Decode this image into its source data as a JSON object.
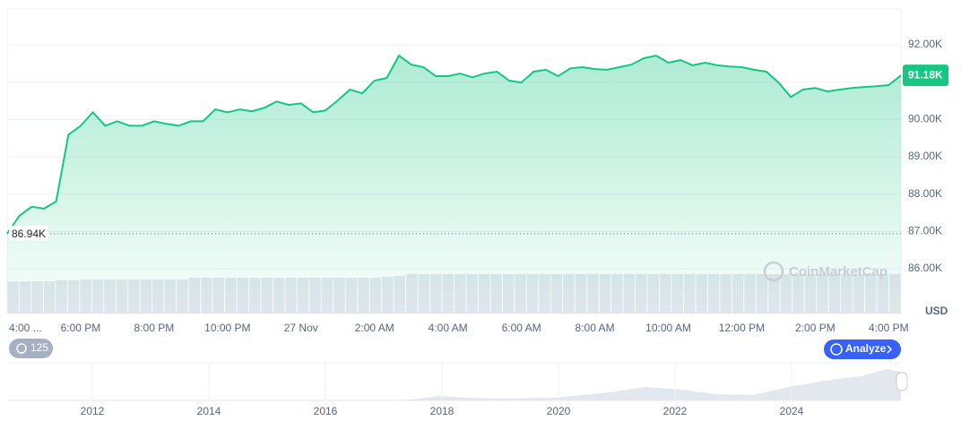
{
  "chart_data": {
    "type": "line",
    "categories": [
      "4:00 ...",
      null,
      null,
      null,
      null,
      null,
      "6:00 PM",
      null,
      null,
      null,
      null,
      null,
      "8:00 PM",
      null,
      null,
      null,
      null,
      null,
      "10:00 PM",
      null,
      null,
      null,
      null,
      null,
      "27 Nov",
      null,
      null,
      null,
      null,
      null,
      "2:00 AM",
      null,
      null,
      null,
      null,
      null,
      "4:00 AM",
      null,
      null,
      null,
      null,
      null,
      "6:00 AM",
      null,
      null,
      null,
      null,
      null,
      "8:00 AM",
      null,
      null,
      null,
      null,
      null,
      "10:00 AM",
      null,
      null,
      null,
      null,
      null,
      "12:00 PM",
      null,
      null,
      null,
      null,
      null,
      "2:00 PM",
      null,
      null,
      null,
      null,
      null,
      "4:00 PM",
      null
    ],
    "series": [
      {
        "color": "#16c784",
        "values": [
          86940,
          87420,
          87660,
          87610,
          87800,
          89590,
          89830,
          90190,
          89830,
          89950,
          89830,
          89830,
          89950,
          89880,
          89830,
          89950,
          89950,
          90270,
          90190,
          90270,
          90220,
          90310,
          90480,
          90390,
          90430,
          90190,
          90240,
          90510,
          90800,
          90700,
          91040,
          91110,
          91710,
          91470,
          91400,
          91160,
          91160,
          91230,
          91130,
          91230,
          91280,
          91040,
          90990,
          91280,
          91330,
          91160,
          91370,
          91400,
          91350,
          91330,
          91400,
          91470,
          91640,
          91710,
          91520,
          91590,
          91450,
          91520,
          91450,
          91420,
          91400,
          91330,
          91280,
          90990,
          90600,
          90800,
          90840,
          90750,
          90800,
          90840,
          90870,
          90890,
          90920,
          91180
        ]
      }
    ],
    "ylim": [
      84800,
      92960
    ],
    "yticks": [
      {
        "value": 86000,
        "label": "86.00K"
      },
      {
        "value": 87000,
        "label": "87.00K"
      },
      {
        "value": 88000,
        "label": "88.00K"
      },
      {
        "value": 89000,
        "label": "89.00K"
      },
      {
        "value": 90000,
        "label": "90.00K"
      },
      {
        "value": 91000,
        "label": "91.00K"
      },
      {
        "value": 92000,
        "label": "92.00K"
      }
    ],
    "grid": true,
    "reference_line": {
      "value": 86940,
      "label": "86.94K"
    },
    "current_value": {
      "value": 91180,
      "label": "91.18K"
    },
    "y_axis_unit": "USD",
    "volume": {
      "color": "#e3e7ee",
      "ylim": [
        0,
        50
      ],
      "values": [
        36,
        36,
        36,
        36,
        37,
        37,
        38,
        38,
        38,
        38,
        38,
        38,
        38,
        38,
        38,
        40,
        40,
        40,
        40,
        40,
        40,
        40,
        40,
        40,
        40,
        40,
        40,
        40,
        40,
        40,
        40,
        41,
        42,
        44,
        44,
        44,
        44,
        44,
        44,
        44,
        44,
        44,
        44,
        44,
        44,
        44,
        44,
        44,
        44,
        44,
        44,
        44,
        44,
        44,
        44,
        44,
        44,
        44,
        44,
        44,
        44,
        44,
        44,
        44,
        44,
        44,
        44,
        44,
        44,
        44,
        44,
        44,
        44,
        44
      ]
    },
    "navigator": {
      "years": [
        "2012",
        "2014",
        "2016",
        "2018",
        "2020",
        "2022",
        "2024"
      ]
    },
    "zoom_count": 125,
    "button_label": "Analyze",
    "watermark": "CoinMarketCap"
  }
}
